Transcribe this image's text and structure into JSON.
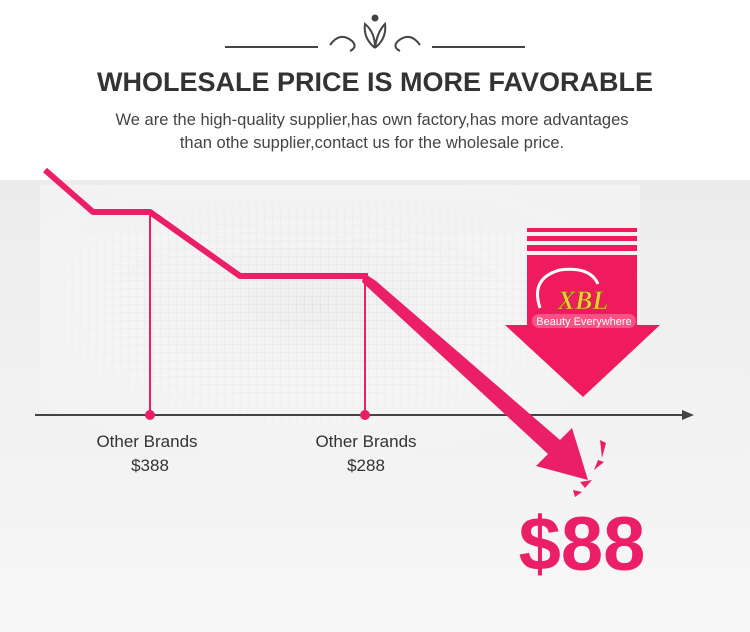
{
  "header": {
    "title": "WHOLESALE PRICE IS MORE FAVORABLE",
    "subtitle_lines": [
      "We are the high-quality supplier,has own factory,has more advantages",
      "than othe supplier,contact us for the wholesale price."
    ]
  },
  "points": [
    {
      "label": "Other Brands",
      "price": "$388"
    },
    {
      "label": "Other Brands",
      "price": "$288"
    }
  ],
  "logo": {
    "name": "XBL",
    "tagline": "Beauty Everywhere"
  },
  "final_price": "$88"
}
